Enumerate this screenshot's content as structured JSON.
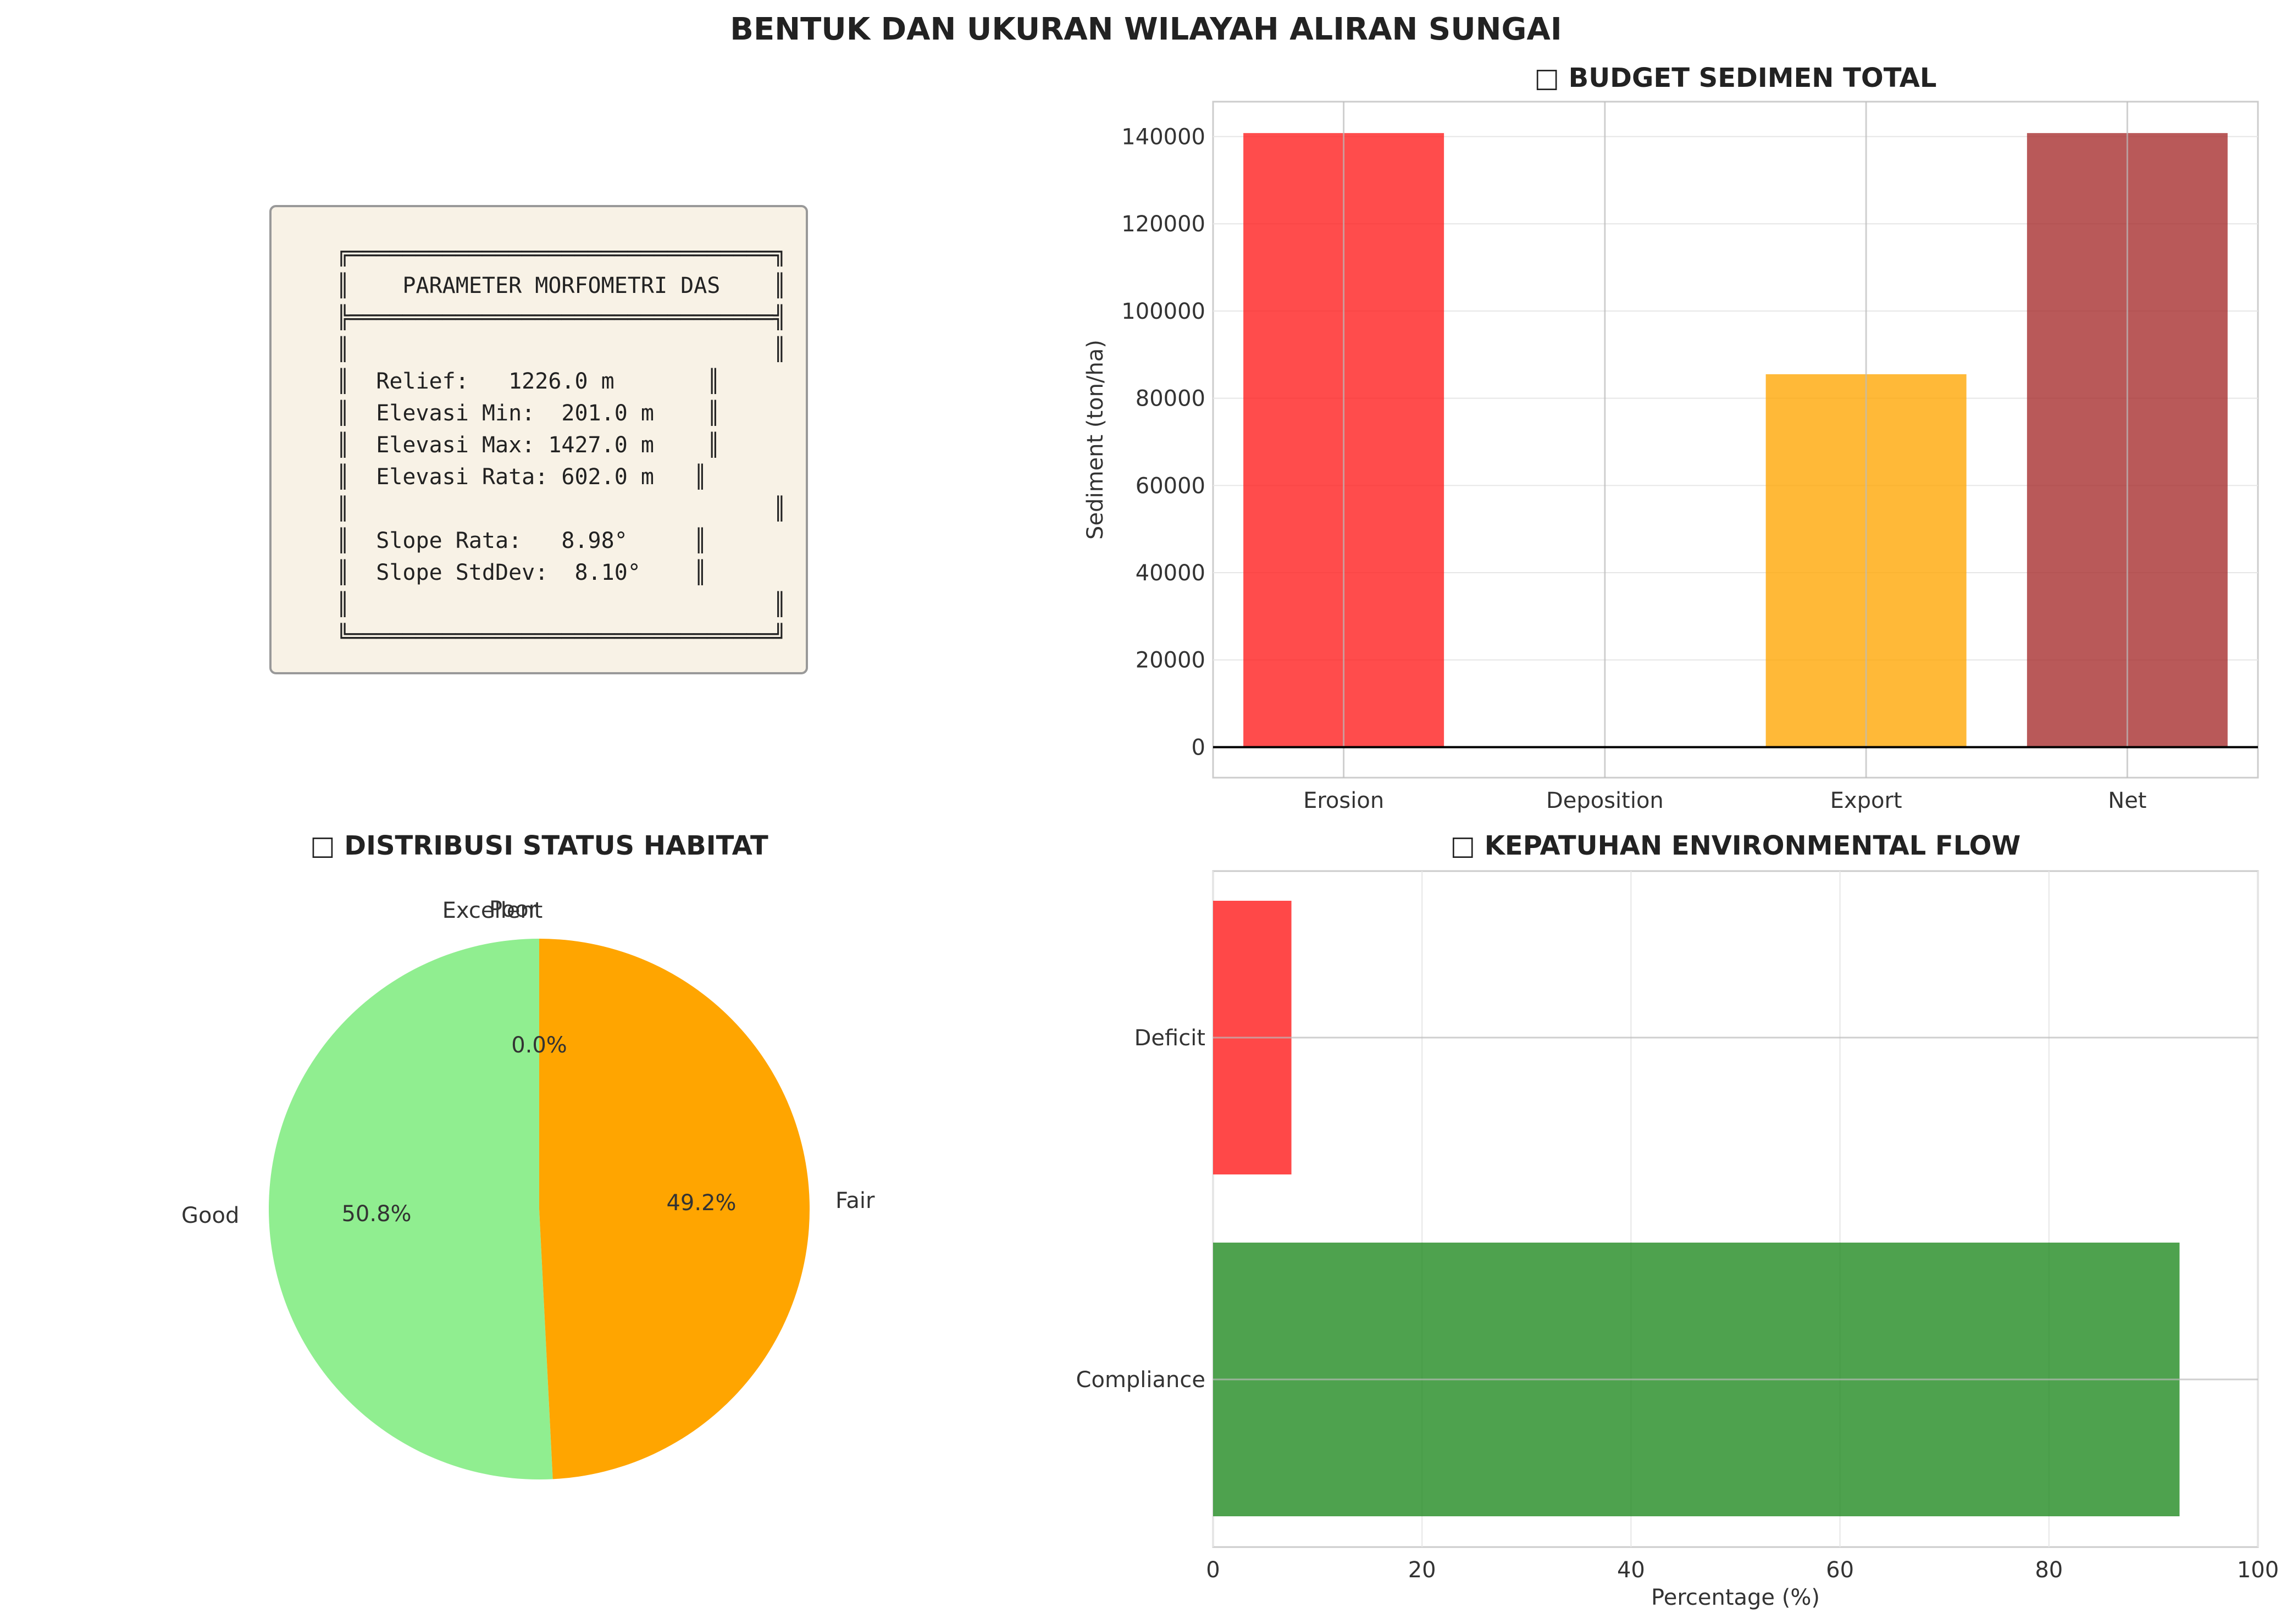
{
  "figure": {
    "title": "BENTUK DAN UKURAN WILAYAH ALIRAN SUNGAI"
  },
  "info_box": {
    "lines": [
      "╔════════════════════════════════╗",
      "║    PARAMETER MORFOMETRI DAS    ║",
      "╠════════════════════════════════╣",
      "║                                ║",
      "║  Relief:   1226.0 m       ║",
      "║  Elevasi Min:  201.0 m    ║",
      "║  Elevasi Max: 1427.0 m    ║",
      "║  Elevasi Rata: 602.0 m   ║",
      "║                                ║",
      "║  Slope Rata:   8.98°     ║",
      "║  Slope StdDev:  8.10°    ║",
      "║                                ║",
      "╚════════════════════════════════╝"
    ],
    "colors": {
      "background": "#f8f2e6",
      "border": "#999999"
    }
  },
  "chart_data": [
    {
      "type": "bar",
      "title": "□ BUDGET SEDIMEN TOTAL",
      "xlabel": "",
      "ylabel": "Sediment (ton/ha)",
      "categories": [
        "Erosion",
        "Deposition",
        "Export",
        "Net"
      ],
      "values": [
        140800,
        0,
        85500,
        140800
      ],
      "colors": [
        "#ff1a1a",
        "#1f77b4",
        "#ffa500",
        "#a52a2a"
      ],
      "ylim": [
        -7000,
        148000
      ],
      "yticks": [
        0,
        20000,
        40000,
        60000,
        80000,
        100000,
        120000,
        140000
      ],
      "grid": true
    },
    {
      "type": "pie",
      "title": "□ DISTRIBUSI STATUS HABITAT",
      "labels": [
        "Excellent",
        "Good",
        "Fair",
        "Poor"
      ],
      "values": [
        0.0,
        50.8,
        49.2,
        0.0
      ],
      "autopct": [
        "",
        "50.8%",
        "49.2%",
        "0.0%"
      ],
      "colors": [
        "#1a9641",
        "#90ee90",
        "#ffa500",
        "#ff4500"
      ],
      "start_angle_deg": 90
    },
    {
      "type": "bar",
      "orientation": "horizontal",
      "title": "□ KEPATUHAN ENVIRONMENTAL FLOW",
      "xlabel": "Percentage (%)",
      "ylabel": "",
      "categories": [
        "Compliance",
        "Deficit"
      ],
      "values": [
        92.5,
        7.5
      ],
      "colors": [
        "#228b22",
        "#ff1a1a"
      ],
      "xlim": [
        0,
        100
      ],
      "xticks": [
        0,
        20,
        40,
        60,
        80,
        100
      ],
      "grid": true
    }
  ]
}
